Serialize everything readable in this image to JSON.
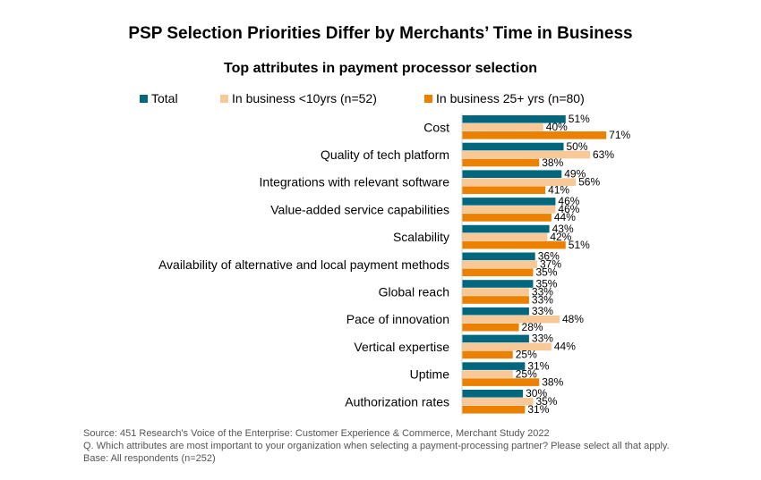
{
  "chart_data": {
    "type": "bar",
    "orientation": "horizontal",
    "title": "PSP Selection Priorities Differ by Merchants’ Time in Business",
    "subtitle": "Top attributes in payment processor selection",
    "legend_placement": "top",
    "grid": false,
    "xlim": [
      0,
      100
    ],
    "categories": [
      "Cost",
      "Quality of tech platform",
      "Integrations with relevant software",
      "Value-added service capabilities",
      "Scalability",
      "Availability of alternative and local payment methods",
      "Global reach",
      "Pace of innovation",
      "Vertical expertise",
      "Uptime",
      "Authorization rates"
    ],
    "series": [
      {
        "name": "Total",
        "color": "#00677f",
        "values": [
          51,
          50,
          49,
          46,
          43,
          36,
          35,
          33,
          33,
          31,
          30
        ],
        "labels": [
          "51%",
          "50%",
          "49%",
          "46%",
          "43%",
          "36%",
          "35%",
          "33%",
          "33%",
          "31%",
          "30%"
        ]
      },
      {
        "name": "In business <10yrs (n=52)",
        "color": "#f8c896",
        "values": [
          40,
          63,
          56,
          46,
          42,
          37,
          33,
          48,
          44,
          25,
          35
        ],
        "labels": [
          "40%",
          "63%",
          "56%",
          "46%",
          "42%",
          "37%",
          "33%",
          "48%",
          "44%",
          "25%",
          "35%"
        ]
      },
      {
        "name": "In business 25+ yrs (n=80)",
        "color": "#ec8000",
        "values": [
          71,
          38,
          41,
          44,
          51,
          35,
          33,
          28,
          25,
          38,
          31
        ],
        "labels": [
          "71%",
          "38%",
          "41%",
          "44%",
          "51%",
          "35%",
          "33%",
          "28%",
          "25%",
          "38%",
          "31%"
        ]
      }
    ]
  },
  "footer": {
    "source": "Source: 451 Research's Voice of the Enterprise: Customer Experience & Commerce, Merchant Study 2022",
    "question": "Q. Which attributes are most important to your organization when selecting a payment-processing partner? Please select all that apply.",
    "base": "Base: All respondents (n=252)"
  }
}
